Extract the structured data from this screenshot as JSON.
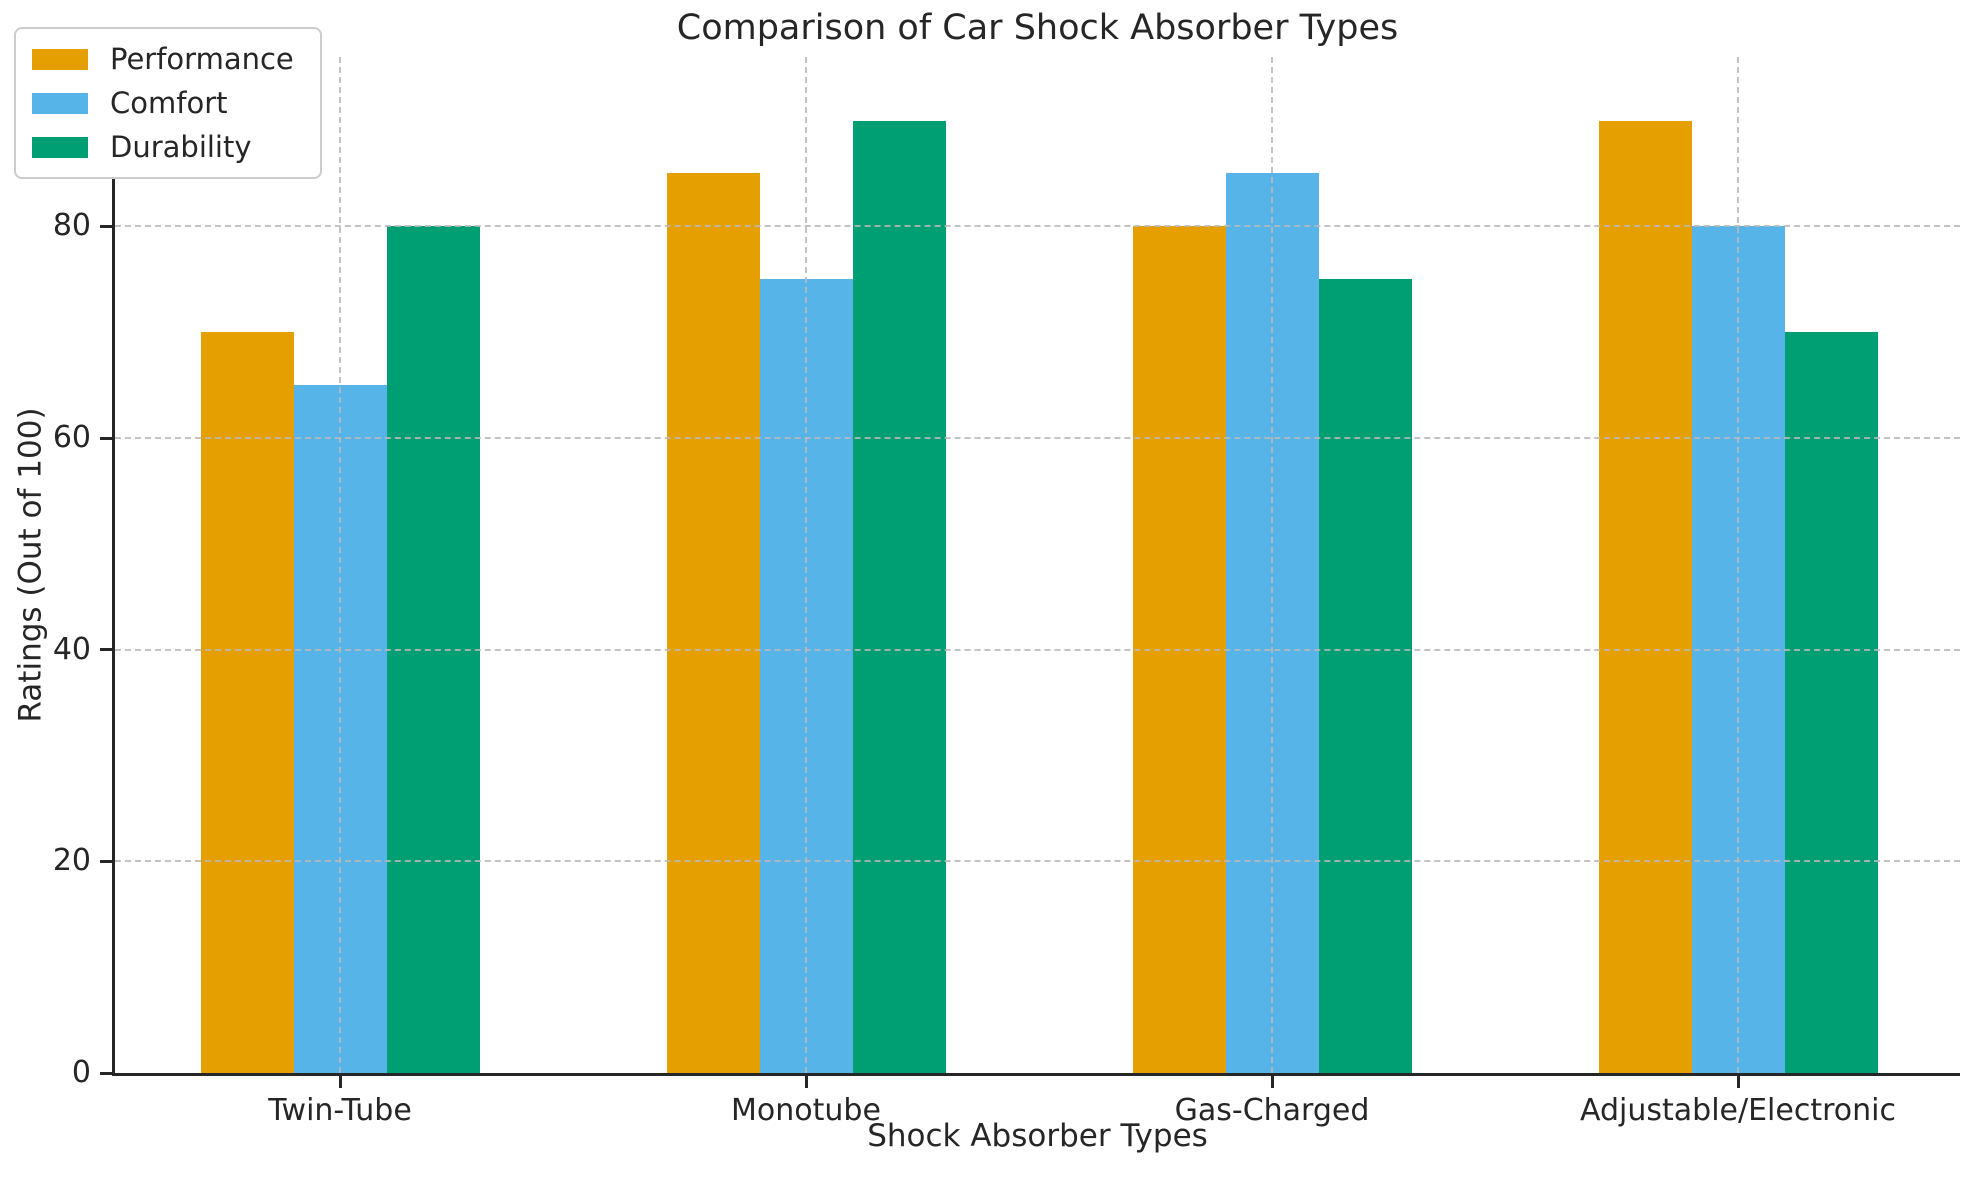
{
  "chart_data": {
    "type": "bar",
    "title": "Comparison of Car Shock Absorber Types",
    "xlabel": "Shock Absorber Types",
    "ylabel": "Ratings (Out of 100)",
    "categories": [
      "Twin-Tube",
      "Monotube",
      "Gas-Charged",
      "Adjustable/Electronic"
    ],
    "series": [
      {
        "name": "Performance",
        "color": "#E69F00",
        "values": [
          70,
          85,
          80,
          90
        ]
      },
      {
        "name": "Comfort",
        "color": "#56B4E9",
        "values": [
          65,
          75,
          85,
          80
        ]
      },
      {
        "name": "Durability",
        "color": "#009E73",
        "values": [
          80,
          90,
          75,
          70
        ]
      }
    ],
    "yticks": [
      0,
      20,
      40,
      60,
      80
    ],
    "ylim": [
      0,
      96
    ],
    "grid": "dashed gray gridlines on both axes, drawn above bars",
    "legend_position": "upper left",
    "colors": {
      "text_and_spines": "#262626",
      "gridline": "#B9B9B9",
      "background": "#FFFFFF"
    }
  }
}
